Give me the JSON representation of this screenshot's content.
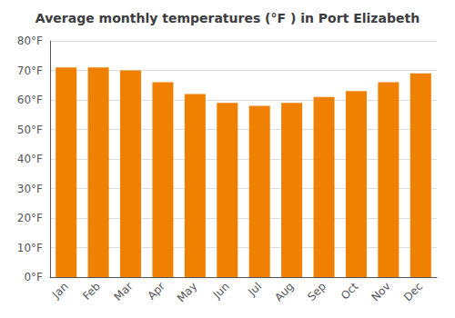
{
  "chart_data": {
    "type": "bar",
    "title": "Average monthly temperatures (°F ) in Port Elizabeth",
    "categories": [
      "Jan",
      "Feb",
      "Mar",
      "Apr",
      "May",
      "Jun",
      "Jul",
      "Aug",
      "Sep",
      "Oct",
      "Nov",
      "Dec"
    ],
    "values": [
      71,
      71,
      70,
      66,
      62,
      59,
      58,
      59,
      61,
      63,
      66,
      69
    ],
    "color": "#F08000",
    "ylim": [
      0,
      80
    ],
    "yticks": [
      {
        "value": 0,
        "label": "0°F"
      },
      {
        "value": 10,
        "label": "10°F"
      },
      {
        "value": 20,
        "label": "20°F"
      },
      {
        "value": 30,
        "label": "30°F"
      },
      {
        "value": 40,
        "label": "40°F"
      },
      {
        "value": 50,
        "label": "50°F"
      },
      {
        "value": 60,
        "label": "60°F"
      },
      {
        "value": 70,
        "label": "70°F"
      },
      {
        "value": 80,
        "label": "80°F"
      }
    ],
    "grid": true
  }
}
